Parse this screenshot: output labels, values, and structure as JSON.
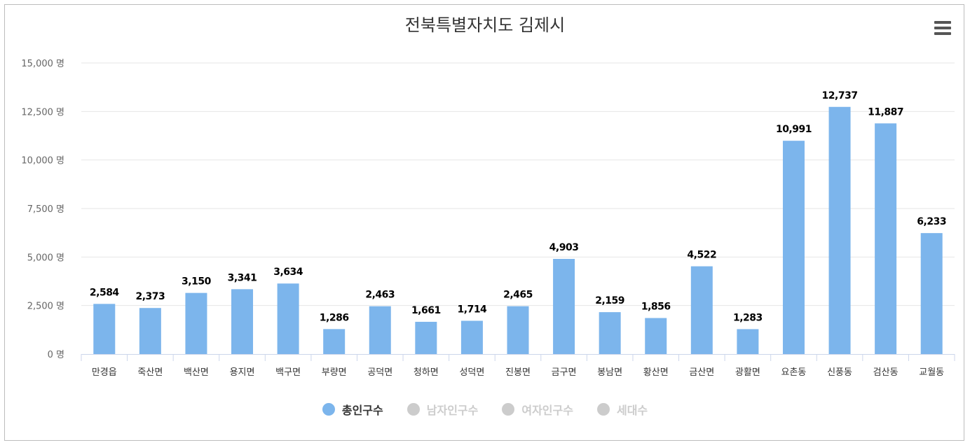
{
  "title": "전북특별자치도 김제시",
  "menu_icon": "hamburger-menu-icon",
  "chart_data": {
    "type": "bar",
    "title": "전북특별자치도 김제시",
    "categories": [
      "만경읍",
      "죽산면",
      "백산면",
      "용지면",
      "백구면",
      "부량면",
      "공덕면",
      "청하면",
      "성덕면",
      "진봉면",
      "금구면",
      "봉남면",
      "황산면",
      "금산면",
      "광활면",
      "요촌동",
      "신풍동",
      "검산동",
      "교월동"
    ],
    "series": [
      {
        "name": "총인구수",
        "values": [
          2584,
          2373,
          3150,
          3341,
          3634,
          1286,
          2463,
          1661,
          1714,
          2465,
          4903,
          2159,
          1856,
          4522,
          1283,
          10991,
          12737,
          11887,
          6233
        ],
        "color": "#7cb5ec",
        "visible": true
      }
    ],
    "data_labels": [
      "2,584",
      "2,373",
      "3,150",
      "3,341",
      "3,634",
      "1,286",
      "2,463",
      "1,661",
      "1,714",
      "2,465",
      "4,903",
      "2,159",
      "1,856",
      "4,522",
      "1,283",
      "10,991",
      "12,737",
      "11,887",
      "6,233"
    ],
    "y_ticks": [
      0,
      2500,
      5000,
      7500,
      10000,
      12500,
      15000
    ],
    "y_tick_labels": [
      "0 명",
      "2,500 명",
      "5,000 명",
      "7,500 명",
      "10,000 명",
      "12,500 명",
      "15,000 명"
    ],
    "ylim": [
      0,
      15000
    ],
    "grid": true,
    "legend_position": "bottom-center"
  },
  "legend": [
    {
      "label": "총인구수",
      "color": "#7cb5ec",
      "active": true
    },
    {
      "label": "남자인구수",
      "color": "#cccccc",
      "active": false
    },
    {
      "label": "여자인구수",
      "color": "#cccccc",
      "active": false
    },
    {
      "label": "세대수",
      "color": "#cccccc",
      "active": false
    }
  ]
}
